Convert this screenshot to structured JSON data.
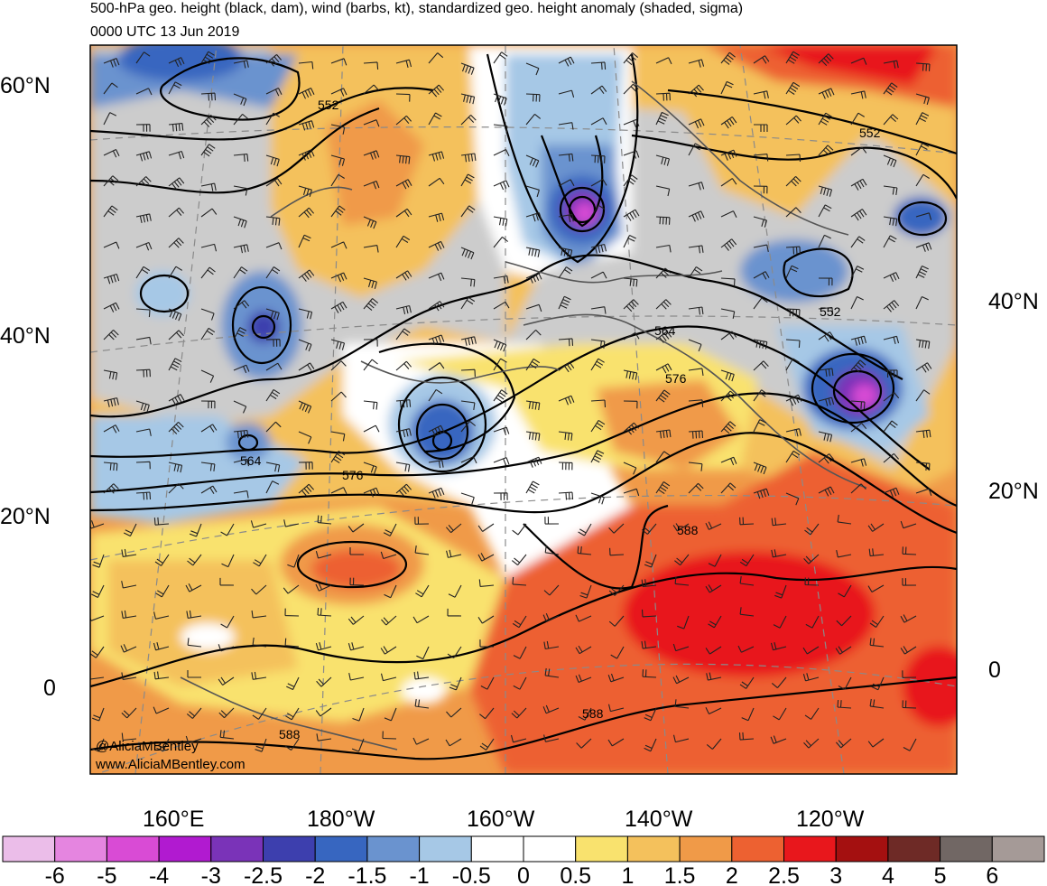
{
  "titles": {
    "line1": "500-hPa geo. height (black, dam), wind (barbs, kt), standardized geo. height anomaly (shaded, sigma)",
    "line2": "0000 UTC 13 Jun 2019"
  },
  "axes": {
    "lat_left": [
      "60°N",
      "40°N",
      "20°N",
      "0"
    ],
    "lat_right": [
      "40°N",
      "20°N",
      "0"
    ],
    "lon_bottom": [
      "160°E",
      "180°W",
      "160°W",
      "140°W",
      "120°W"
    ]
  },
  "contour_labels": [
    "552",
    "552",
    "552",
    "564",
    "564",
    "576",
    "576",
    "588",
    "588",
    "588"
  ],
  "credit": {
    "handle": "@AliciaMBentley",
    "site": "www.AliciaMBentley.com"
  },
  "colorbar": {
    "colors": [
      "#ebbde9",
      "#e585e0",
      "#d94bd5",
      "#b11ad0",
      "#7a33b8",
      "#3d3fae",
      "#3766c0",
      "#6a93cf",
      "#a6c8e6",
      "#ffffff",
      "#ffffff",
      "#f9e26e",
      "#f4c15c",
      "#f09a48",
      "#ed6131",
      "#e8171c",
      "#a41010",
      "#6e2a26",
      "#716764",
      "#a59a97"
    ],
    "labels": [
      "-6",
      "-5",
      "-4",
      "-3",
      "-2.5",
      "-2",
      "-1.5",
      "-1",
      "-0.5",
      "0",
      "0.5",
      "1",
      "1.5",
      "2",
      "2.5",
      "3",
      "4",
      "5",
      "6"
    ]
  }
}
